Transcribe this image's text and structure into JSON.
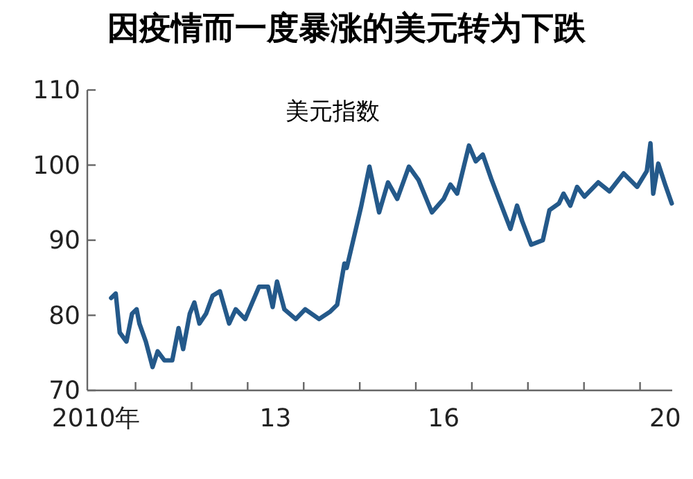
{
  "chart_data": {
    "type": "line",
    "title": "因疫情而一度暴涨的美元转为下跌",
    "subtitle": "美元指数",
    "xlim": [
      "2010-02-21",
      "2020-07-29"
    ],
    "ylim": [
      70,
      110
    ],
    "yticks": [
      70,
      80,
      90,
      100,
      110
    ],
    "xticks": [
      {
        "value": "2011-01-01",
        "label": null
      },
      {
        "value": "2012-01-01",
        "label": null
      },
      {
        "value": "2013-01-01",
        "label": null
      },
      {
        "value": "2014-01-01",
        "label": null
      },
      {
        "value": "2015-01-01",
        "label": null
      },
      {
        "value": "2016-01-01",
        "label": null
      },
      {
        "value": "2017-01-01",
        "label": null
      },
      {
        "value": "2018-01-01",
        "label": null
      },
      {
        "value": "2019-01-01",
        "label": null
      },
      {
        "value": "2020-01-01",
        "label": null
      },
      {
        "value": "2010-04-19",
        "label": "2010年"
      },
      {
        "value": "2013-07-01",
        "label": "13"
      },
      {
        "value": "2016-07-01",
        "label": "16"
      },
      {
        "value": "2020-06-13",
        "label": "20"
      }
    ],
    "grid": false,
    "marker": "none",
    "line_style": "solid",
    "series": [
      {
        "color": "#24598a",
        "x": [
          "2010-07-26",
          "2010-08-25",
          "2010-09-20",
          "2010-11-03",
          "2010-12-09",
          "2011-01-08",
          "2011-01-26",
          "2011-03-09",
          "2011-04-22",
          "2011-05-25",
          "2011-07-08",
          "2011-08-28",
          "2011-10-08",
          "2011-11-07",
          "2011-12-20",
          "2012-01-19",
          "2012-02-21",
          "2012-04-04",
          "2012-05-17",
          "2012-07-04",
          "2012-09-02",
          "2012-10-15",
          "2012-12-16",
          "2013-03-16",
          "2013-05-14",
          "2013-06-13",
          "2013-07-11",
          "2013-08-28",
          "2013-11-10",
          "2014-01-11",
          "2014-04-11",
          "2014-06-23",
          "2014-08-07",
          "2014-09-23",
          "2014-10-08",
          "2015-01-08",
          "2015-03-05",
          "2015-05-07",
          "2015-07-04",
          "2015-09-02",
          "2015-11-17",
          "2016-01-19",
          "2016-04-15",
          "2016-07-01",
          "2016-08-14",
          "2016-09-27",
          "2016-12-13",
          "2017-01-26",
          "2017-03-13",
          "2017-05-10",
          "2017-08-10",
          "2017-09-09",
          "2017-10-22",
          "2017-11-25",
          "2018-01-22",
          "2018-04-08",
          "2018-05-21",
          "2018-07-22",
          "2018-08-21",
          "2018-10-04",
          "2018-11-17",
          "2019-01-04",
          "2019-04-04",
          "2019-06-16",
          "2019-09-16",
          "2019-12-13",
          "2020-02-14",
          "2020-03-09",
          "2020-03-27",
          "2020-04-29",
          "2020-06-13",
          "2020-07-26"
        ],
        "values": [
          82.3,
          82.9,
          77.7,
          76.5,
          80.2,
          80.8,
          78.9,
          76.5,
          73.1,
          75.2,
          74,
          74,
          78.3,
          75.5,
          80.2,
          81.7,
          78.9,
          80.2,
          82.6,
          83.2,
          78.9,
          80.8,
          79.5,
          83.8,
          83.8,
          81.1,
          84.5,
          80.8,
          79.5,
          80.8,
          79.5,
          80.5,
          81.4,
          86.9,
          86.3,
          94.3,
          99.8,
          93.7,
          97.7,
          95.5,
          99.8,
          98,
          93.7,
          95.5,
          97.4,
          96.2,
          102.6,
          100.5,
          101.4,
          98,
          93.1,
          91.5,
          94.6,
          92.5,
          89.4,
          90,
          94,
          94.9,
          96.2,
          94.6,
          97.1,
          95.8,
          97.7,
          96.5,
          98.9,
          97.1,
          99.2,
          102.9,
          96.2,
          100.2,
          97.4,
          94.9
        ]
      }
    ]
  }
}
